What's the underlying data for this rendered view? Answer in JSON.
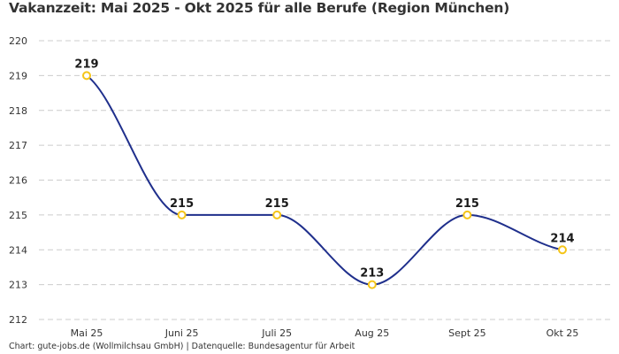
{
  "title": "Vakanzzeit: Mai 2025 - Okt 2025 für alle Berufe (Region München)",
  "footer": "Chart: gute-jobs.de (Wollmilchsau GmbH) | Datenquelle: Bundesagentur für Arbeit",
  "colors": {
    "line": "#1f2f8c",
    "marker_stroke": "#f5c518",
    "marker_fill": "#ffffff",
    "grid": "#cccccc",
    "text": "#333333"
  },
  "chart_data": {
    "type": "line",
    "title": "Vakanzzeit: Mai 2025 - Okt 2025 für alle Berufe (Region München)",
    "xlabel": "",
    "ylabel": "",
    "categories": [
      "Mai 25",
      "Juni 25",
      "Juli 25",
      "Aug 25",
      "Sept 25",
      "Okt 25"
    ],
    "series": [
      {
        "name": "Vakanzzeit",
        "values": [
          219,
          215,
          215,
          213,
          215,
          214
        ]
      }
    ],
    "data_labels": [
      "219",
      "215",
      "215",
      "213",
      "215",
      "214"
    ],
    "ylim": [
      212,
      220
    ],
    "yticks": [
      212,
      213,
      214,
      215,
      216,
      217,
      218,
      219,
      220
    ],
    "ytick_labels": [
      "212",
      "213",
      "214",
      "215",
      "216",
      "217",
      "218",
      "219",
      "220"
    ],
    "grid": true,
    "grid_style": "dashed horizontal",
    "legend": "none",
    "smooth": true
  }
}
